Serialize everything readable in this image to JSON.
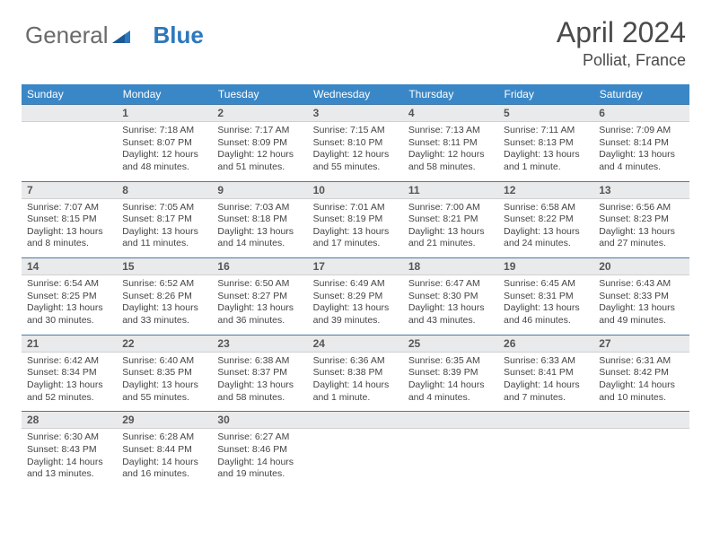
{
  "brand": {
    "part1": "General",
    "part2": "Blue"
  },
  "header": {
    "month": "April 2024",
    "location": "Polliat, France"
  },
  "colors": {
    "header_bg": "#3a87c7",
    "header_text": "#ffffff",
    "daynum_bg": "#e9eaeb",
    "daynum_border_top": "#4a7aa5",
    "text": "#4a4a4a"
  },
  "weekdays": [
    "Sunday",
    "Monday",
    "Tuesday",
    "Wednesday",
    "Thursday",
    "Friday",
    "Saturday"
  ],
  "weeks": [
    [
      {
        "n": "",
        "sunrise": "",
        "sunset": "",
        "day1": "",
        "day2": ""
      },
      {
        "n": "1",
        "sunrise": "Sunrise: 7:18 AM",
        "sunset": "Sunset: 8:07 PM",
        "day1": "Daylight: 12 hours",
        "day2": "and 48 minutes."
      },
      {
        "n": "2",
        "sunrise": "Sunrise: 7:17 AM",
        "sunset": "Sunset: 8:09 PM",
        "day1": "Daylight: 12 hours",
        "day2": "and 51 minutes."
      },
      {
        "n": "3",
        "sunrise": "Sunrise: 7:15 AM",
        "sunset": "Sunset: 8:10 PM",
        "day1": "Daylight: 12 hours",
        "day2": "and 55 minutes."
      },
      {
        "n": "4",
        "sunrise": "Sunrise: 7:13 AM",
        "sunset": "Sunset: 8:11 PM",
        "day1": "Daylight: 12 hours",
        "day2": "and 58 minutes."
      },
      {
        "n": "5",
        "sunrise": "Sunrise: 7:11 AM",
        "sunset": "Sunset: 8:13 PM",
        "day1": "Daylight: 13 hours",
        "day2": "and 1 minute."
      },
      {
        "n": "6",
        "sunrise": "Sunrise: 7:09 AM",
        "sunset": "Sunset: 8:14 PM",
        "day1": "Daylight: 13 hours",
        "day2": "and 4 minutes."
      }
    ],
    [
      {
        "n": "7",
        "sunrise": "Sunrise: 7:07 AM",
        "sunset": "Sunset: 8:15 PM",
        "day1": "Daylight: 13 hours",
        "day2": "and 8 minutes."
      },
      {
        "n": "8",
        "sunrise": "Sunrise: 7:05 AM",
        "sunset": "Sunset: 8:17 PM",
        "day1": "Daylight: 13 hours",
        "day2": "and 11 minutes."
      },
      {
        "n": "9",
        "sunrise": "Sunrise: 7:03 AM",
        "sunset": "Sunset: 8:18 PM",
        "day1": "Daylight: 13 hours",
        "day2": "and 14 minutes."
      },
      {
        "n": "10",
        "sunrise": "Sunrise: 7:01 AM",
        "sunset": "Sunset: 8:19 PM",
        "day1": "Daylight: 13 hours",
        "day2": "and 17 minutes."
      },
      {
        "n": "11",
        "sunrise": "Sunrise: 7:00 AM",
        "sunset": "Sunset: 8:21 PM",
        "day1": "Daylight: 13 hours",
        "day2": "and 21 minutes."
      },
      {
        "n": "12",
        "sunrise": "Sunrise: 6:58 AM",
        "sunset": "Sunset: 8:22 PM",
        "day1": "Daylight: 13 hours",
        "day2": "and 24 minutes."
      },
      {
        "n": "13",
        "sunrise": "Sunrise: 6:56 AM",
        "sunset": "Sunset: 8:23 PM",
        "day1": "Daylight: 13 hours",
        "day2": "and 27 minutes."
      }
    ],
    [
      {
        "n": "14",
        "sunrise": "Sunrise: 6:54 AM",
        "sunset": "Sunset: 8:25 PM",
        "day1": "Daylight: 13 hours",
        "day2": "and 30 minutes."
      },
      {
        "n": "15",
        "sunrise": "Sunrise: 6:52 AM",
        "sunset": "Sunset: 8:26 PM",
        "day1": "Daylight: 13 hours",
        "day2": "and 33 minutes."
      },
      {
        "n": "16",
        "sunrise": "Sunrise: 6:50 AM",
        "sunset": "Sunset: 8:27 PM",
        "day1": "Daylight: 13 hours",
        "day2": "and 36 minutes."
      },
      {
        "n": "17",
        "sunrise": "Sunrise: 6:49 AM",
        "sunset": "Sunset: 8:29 PM",
        "day1": "Daylight: 13 hours",
        "day2": "and 39 minutes."
      },
      {
        "n": "18",
        "sunrise": "Sunrise: 6:47 AM",
        "sunset": "Sunset: 8:30 PM",
        "day1": "Daylight: 13 hours",
        "day2": "and 43 minutes."
      },
      {
        "n": "19",
        "sunrise": "Sunrise: 6:45 AM",
        "sunset": "Sunset: 8:31 PM",
        "day1": "Daylight: 13 hours",
        "day2": "and 46 minutes."
      },
      {
        "n": "20",
        "sunrise": "Sunrise: 6:43 AM",
        "sunset": "Sunset: 8:33 PM",
        "day1": "Daylight: 13 hours",
        "day2": "and 49 minutes."
      }
    ],
    [
      {
        "n": "21",
        "sunrise": "Sunrise: 6:42 AM",
        "sunset": "Sunset: 8:34 PM",
        "day1": "Daylight: 13 hours",
        "day2": "and 52 minutes."
      },
      {
        "n": "22",
        "sunrise": "Sunrise: 6:40 AM",
        "sunset": "Sunset: 8:35 PM",
        "day1": "Daylight: 13 hours",
        "day2": "and 55 minutes."
      },
      {
        "n": "23",
        "sunrise": "Sunrise: 6:38 AM",
        "sunset": "Sunset: 8:37 PM",
        "day1": "Daylight: 13 hours",
        "day2": "and 58 minutes."
      },
      {
        "n": "24",
        "sunrise": "Sunrise: 6:36 AM",
        "sunset": "Sunset: 8:38 PM",
        "day1": "Daylight: 14 hours",
        "day2": "and 1 minute."
      },
      {
        "n": "25",
        "sunrise": "Sunrise: 6:35 AM",
        "sunset": "Sunset: 8:39 PM",
        "day1": "Daylight: 14 hours",
        "day2": "and 4 minutes."
      },
      {
        "n": "26",
        "sunrise": "Sunrise: 6:33 AM",
        "sunset": "Sunset: 8:41 PM",
        "day1": "Daylight: 14 hours",
        "day2": "and 7 minutes."
      },
      {
        "n": "27",
        "sunrise": "Sunrise: 6:31 AM",
        "sunset": "Sunset: 8:42 PM",
        "day1": "Daylight: 14 hours",
        "day2": "and 10 minutes."
      }
    ],
    [
      {
        "n": "28",
        "sunrise": "Sunrise: 6:30 AM",
        "sunset": "Sunset: 8:43 PM",
        "day1": "Daylight: 14 hours",
        "day2": "and 13 minutes."
      },
      {
        "n": "29",
        "sunrise": "Sunrise: 6:28 AM",
        "sunset": "Sunset: 8:44 PM",
        "day1": "Daylight: 14 hours",
        "day2": "and 16 minutes."
      },
      {
        "n": "30",
        "sunrise": "Sunrise: 6:27 AM",
        "sunset": "Sunset: 8:46 PM",
        "day1": "Daylight: 14 hours",
        "day2": "and 19 minutes."
      },
      {
        "n": "",
        "sunrise": "",
        "sunset": "",
        "day1": "",
        "day2": ""
      },
      {
        "n": "",
        "sunrise": "",
        "sunset": "",
        "day1": "",
        "day2": ""
      },
      {
        "n": "",
        "sunrise": "",
        "sunset": "",
        "day1": "",
        "day2": ""
      },
      {
        "n": "",
        "sunrise": "",
        "sunset": "",
        "day1": "",
        "day2": ""
      }
    ]
  ]
}
